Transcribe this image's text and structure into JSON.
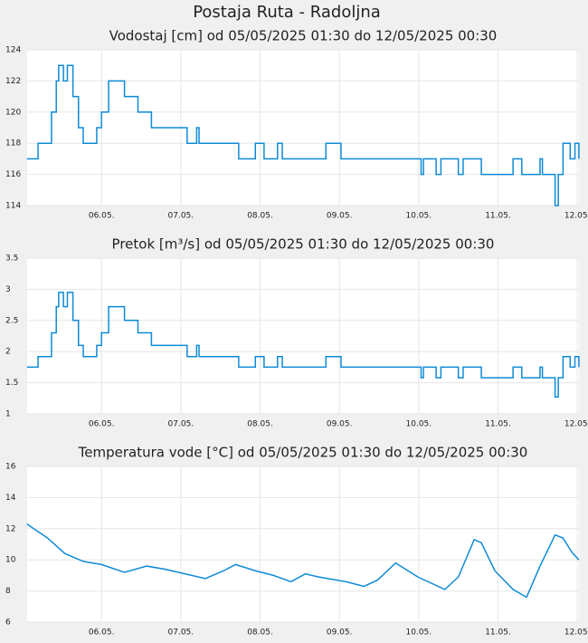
{
  "title": "Postaja Ruta - Radoljna",
  "chart_data": [
    {
      "type": "line",
      "title": "Vodostaj [cm] od 05/05/2025 01:30 do 12/05/2025 00:30",
      "color": "#0e8ad6",
      "step": true,
      "grid": true,
      "x": [
        5.06,
        5.18,
        5.2,
        5.32,
        5.37,
        5.43,
        5.46,
        5.52,
        5.57,
        5.64,
        5.71,
        5.77,
        5.89,
        5.94,
        6.0,
        6.09,
        6.26,
        6.29,
        6.43,
        6.46,
        6.6,
        6.63,
        7.03,
        7.08,
        7.2,
        7.23,
        7.69,
        7.73,
        7.94,
        8.05,
        8.22,
        8.28,
        8.79,
        8.83,
        8.96,
        9.02,
        9.99,
        10.03,
        10.06,
        10.17,
        10.22,
        10.28,
        10.45,
        10.5,
        10.56,
        10.67,
        10.79,
        11.13,
        11.19,
        11.3,
        11.53,
        11.56,
        11.7,
        11.72,
        11.76,
        11.82,
        11.91,
        11.97,
        12.02
      ],
      "values": [
        117,
        117,
        118,
        118,
        120,
        122,
        123,
        122,
        123,
        121,
        119,
        118,
        118,
        119,
        120,
        122,
        122,
        121,
        121,
        120,
        120,
        119,
        119,
        118,
        119,
        118,
        118,
        117,
        118,
        117,
        118,
        117,
        117,
        118,
        118,
        117,
        117,
        116,
        117,
        117,
        116,
        117,
        117,
        116,
        117,
        117,
        116,
        116,
        117,
        116,
        117,
        116,
        116,
        114,
        116,
        118,
        117,
        118,
        117
      ],
      "xlim": [
        5.0625,
        12.0208
      ],
      "xticks": [
        {
          "value": 6,
          "label": "06.05."
        },
        {
          "value": 7,
          "label": "07.05."
        },
        {
          "value": 8,
          "label": "08.05."
        },
        {
          "value": 9,
          "label": "09.05."
        },
        {
          "value": 10,
          "label": "10.05."
        },
        {
          "value": 11,
          "label": "11.05."
        },
        {
          "value": 12,
          "label": "12.05."
        }
      ],
      "ylim": [
        114,
        124
      ],
      "yticks": [
        114,
        116,
        118,
        120,
        122,
        124
      ]
    },
    {
      "type": "line",
      "title": "Pretok [m³/s] od 05/05/2025 01:30 do 12/05/2025 00:30",
      "color": "#0e8ad6",
      "step": true,
      "grid": true,
      "x": [
        5.06,
        5.18,
        5.2,
        5.32,
        5.37,
        5.43,
        5.46,
        5.52,
        5.57,
        5.64,
        5.71,
        5.77,
        5.89,
        5.94,
        6.0,
        6.09,
        6.26,
        6.29,
        6.43,
        6.46,
        6.6,
        6.63,
        7.03,
        7.08,
        7.2,
        7.23,
        7.69,
        7.73,
        7.94,
        8.05,
        8.22,
        8.28,
        8.79,
        8.83,
        8.96,
        9.02,
        9.99,
        10.03,
        10.06,
        10.17,
        10.22,
        10.28,
        10.45,
        10.5,
        10.56,
        10.67,
        10.79,
        11.13,
        11.19,
        11.3,
        11.53,
        11.56,
        11.7,
        11.72,
        11.76,
        11.82,
        11.91,
        11.97,
        12.02
      ],
      "values": [
        1.75,
        1.75,
        1.92,
        1.92,
        2.3,
        2.72,
        2.95,
        2.72,
        2.95,
        2.5,
        2.1,
        1.92,
        1.92,
        2.1,
        2.3,
        2.72,
        2.72,
        2.5,
        2.5,
        2.3,
        2.3,
        2.1,
        2.1,
        1.92,
        2.1,
        1.92,
        1.92,
        1.75,
        1.92,
        1.75,
        1.92,
        1.75,
        1.75,
        1.92,
        1.92,
        1.75,
        1.75,
        1.58,
        1.75,
        1.75,
        1.58,
        1.75,
        1.75,
        1.58,
        1.75,
        1.75,
        1.58,
        1.58,
        1.75,
        1.58,
        1.75,
        1.58,
        1.58,
        1.27,
        1.58,
        1.92,
        1.75,
        1.92,
        1.75
      ],
      "xlim": [
        5.0625,
        12.0208
      ],
      "xticks": [
        {
          "value": 6,
          "label": "06.05."
        },
        {
          "value": 7,
          "label": "07.05."
        },
        {
          "value": 8,
          "label": "08.05."
        },
        {
          "value": 9,
          "label": "09.05."
        },
        {
          "value": 10,
          "label": "10.05."
        },
        {
          "value": 11,
          "label": "11.05."
        },
        {
          "value": 12,
          "label": "12.05."
        }
      ],
      "ylim": [
        1,
        3.5
      ],
      "yticks": [
        1,
        1.5,
        2,
        2.5,
        3,
        3.5
      ]
    },
    {
      "type": "line",
      "title": "Temperatura vode [°C] od 05/05/2025 01:30 do 12/05/2025 00:30",
      "color": "#0e8ad6",
      "step": false,
      "grid": true,
      "x": [
        5.06,
        5.32,
        5.54,
        5.77,
        6.0,
        6.29,
        6.57,
        6.8,
        7.14,
        7.31,
        7.54,
        7.69,
        7.94,
        8.17,
        8.39,
        8.57,
        8.74,
        9.08,
        9.31,
        9.48,
        9.71,
        9.99,
        10.33,
        10.5,
        10.7,
        10.79,
        10.96,
        11.19,
        11.36,
        11.53,
        11.72,
        11.82,
        11.93,
        12.02
      ],
      "values": [
        12.3,
        11.4,
        10.4,
        9.9,
        9.7,
        9.2,
        9.6,
        9.4,
        9.0,
        8.8,
        9.3,
        9.7,
        9.3,
        9.0,
        8.6,
        9.1,
        8.9,
        8.6,
        8.3,
        8.7,
        9.8,
        8.9,
        8.1,
        8.9,
        11.3,
        11.1,
        9.3,
        8.1,
        7.6,
        9.6,
        11.6,
        11.4,
        10.5,
        10.0
      ],
      "xlim": [
        5.0625,
        12.0208
      ],
      "xticks": [
        {
          "value": 6,
          "label": "06.05."
        },
        {
          "value": 7,
          "label": "07.05."
        },
        {
          "value": 8,
          "label": "08.05."
        },
        {
          "value": 9,
          "label": "09.05."
        },
        {
          "value": 10,
          "label": "10.05."
        },
        {
          "value": 11,
          "label": "11.05."
        },
        {
          "value": 12,
          "label": "12.05."
        }
      ],
      "ylim": [
        6,
        16
      ],
      "yticks": [
        6,
        8,
        10,
        12,
        14,
        16
      ]
    }
  ]
}
